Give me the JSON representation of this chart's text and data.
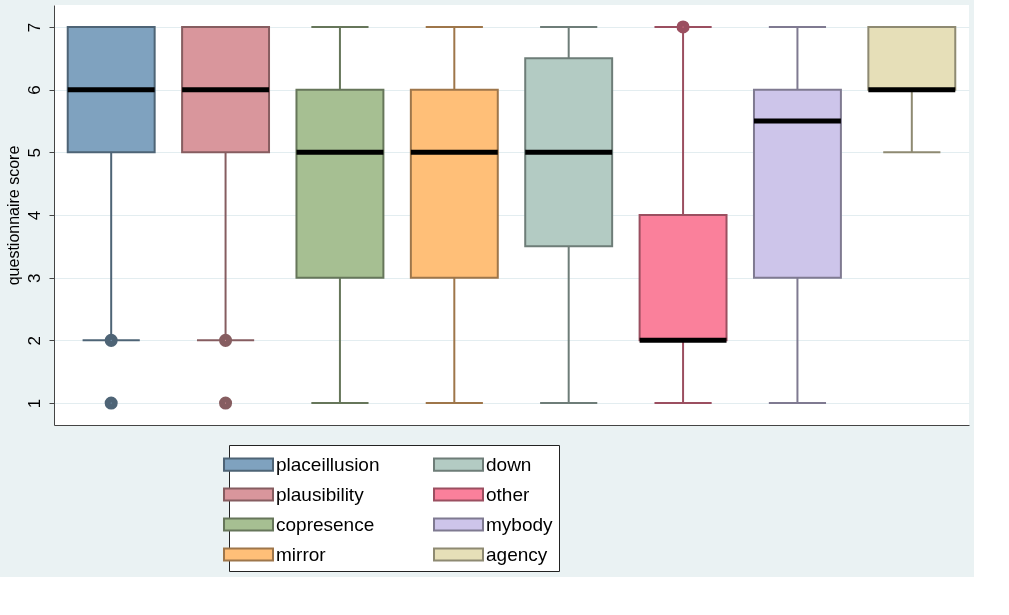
{
  "chart_data": {
    "type": "box",
    "ylabel": "questionnaire score",
    "ylim": [
      0.65,
      7.35
    ],
    "yticks": [
      1,
      2,
      3,
      4,
      5,
      6,
      7
    ],
    "grid": "y",
    "legend": "bottom",
    "tick_labels": "y",
    "series": [
      {
        "name": "placeillusion",
        "color": "#7fa2bf",
        "boxes": [
          {
            "low": 2,
            "q1": 5,
            "median": 6,
            "q3": 7,
            "high": 7,
            "outliers": [
              2,
              1
            ]
          }
        ]
      },
      {
        "name": "plausibility",
        "color": "#d9969c",
        "boxes": [
          {
            "low": 2,
            "q1": 5,
            "median": 6,
            "q3": 7,
            "high": 7,
            "outliers": [
              2,
              1
            ]
          }
        ]
      },
      {
        "name": "copresence",
        "color": "#a6bf92",
        "boxes": [
          {
            "low": 1,
            "q1": 3,
            "median": 5,
            "q3": 6,
            "high": 7
          }
        ]
      },
      {
        "name": "mirror",
        "color": "#ffbf78",
        "boxes": [
          {
            "low": 1,
            "q1": 3,
            "median": 5,
            "q3": 6,
            "high": 7
          }
        ]
      },
      {
        "name": "down",
        "color": "#b3cbc3",
        "boxes": [
          {
            "low": 1,
            "q1": 3.5,
            "median": 5,
            "q3": 6.5,
            "high": 7
          }
        ]
      },
      {
        "name": "other",
        "color": "#fa809b",
        "boxes": [
          {
            "low": 1,
            "q1": 2,
            "median": 2,
            "q3": 4,
            "high": 7,
            "outliers": [
              7
            ]
          }
        ]
      },
      {
        "name": "mybody",
        "color": "#cdc5ea",
        "boxes": [
          {
            "low": 1,
            "q1": 3,
            "median": 5.5,
            "q3": 6,
            "high": 7
          }
        ]
      },
      {
        "name": "agency",
        "color": "#e6dfb8",
        "boxes": [
          {
            "low": 5,
            "q1": 6,
            "median": 6,
            "q3": 7,
            "high": 7
          }
        ]
      }
    ]
  }
}
